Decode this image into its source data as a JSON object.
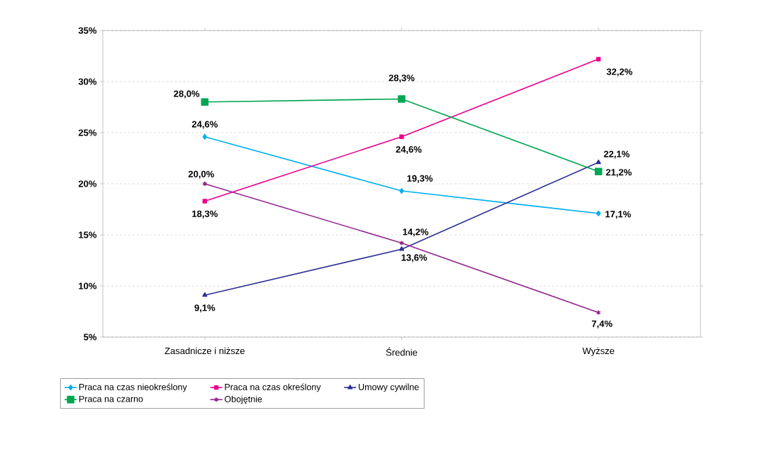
{
  "chart_data": {
    "type": "line",
    "categories": [
      "Zasadnicze i niższe",
      "Średnie",
      "Wyższe"
    ],
    "series": [
      {
        "name": "Praca na czas nieokreślony",
        "color": "#00aeef",
        "marker": "diamond",
        "values": [
          24.6,
          19.3,
          17.1
        ],
        "value_labels": [
          "24,6%",
          "19,3%",
          "17,1%"
        ]
      },
      {
        "name": "Praca na czas określony",
        "color": "#ec008c",
        "marker": "square",
        "values": [
          18.3,
          24.6,
          32.2
        ],
        "value_labels": [
          "18,3%",
          "24,6%",
          "32,2%"
        ]
      },
      {
        "name": "Umowy cywilne",
        "color": "#2e3192",
        "marker": "triangle",
        "values": [
          9.1,
          13.6,
          22.1
        ],
        "value_labels": [
          "9,1%",
          "13,6%",
          "22,1%"
        ]
      },
      {
        "name": "Praca na czarno",
        "color": "#00a651",
        "marker": "square",
        "values": [
          28.0,
          28.3,
          21.2
        ],
        "value_labels": [
          "28,0%",
          "28,3%",
          "21,2%"
        ]
      },
      {
        "name": "Obojętnie",
        "color": "#92278f",
        "marker": "cross",
        "values": [
          20.0,
          14.2,
          7.4
        ],
        "value_labels": [
          "20,0%",
          "14,2%",
          "7,4%"
        ]
      }
    ],
    "ylim": [
      5,
      35
    ],
    "yticks": [
      {
        "value": 5,
        "label": "5%"
      },
      {
        "value": 10,
        "label": "10%"
      },
      {
        "value": 15,
        "label": "15%"
      },
      {
        "value": 20,
        "label": "20%"
      },
      {
        "value": 25,
        "label": "25%"
      },
      {
        "value": 30,
        "label": "30%"
      },
      {
        "value": 35,
        "label": "35%"
      }
    ],
    "grid": "y",
    "legend": "bottom",
    "line_style": "solid"
  }
}
